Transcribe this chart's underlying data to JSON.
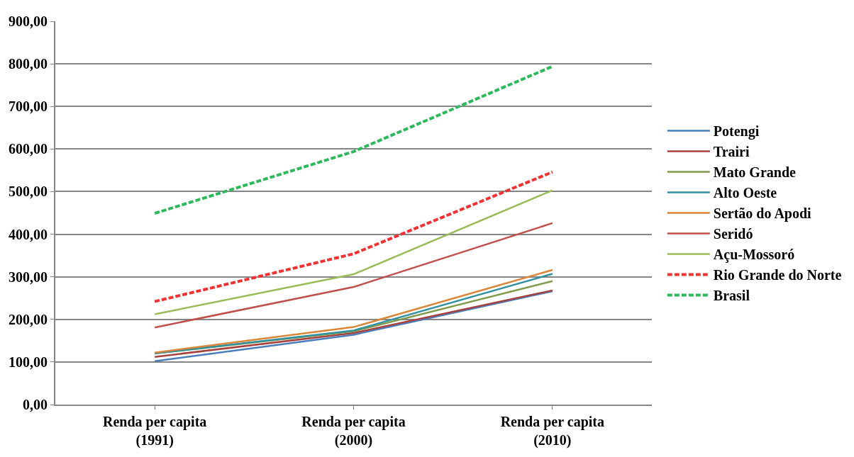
{
  "chart_data": {
    "type": "line",
    "categories": [
      "Renda per capita\n(1991)",
      "Renda per capita\n(2000)",
      "Renda per capita\n(2010)"
    ],
    "series": [
      {
        "name": "Potengi",
        "color": "#4a7ebb",
        "values": [
          102,
          164,
          266
        ]
      },
      {
        "name": "Trairi",
        "color": "#a5403d",
        "values": [
          112,
          168,
          268
        ]
      },
      {
        "name": "Mato Grande",
        "color": "#7f9a48",
        "values": [
          120,
          172,
          290
        ]
      },
      {
        "name": "Alto Oeste",
        "color": "#31909f",
        "values": [
          120,
          174,
          307
        ]
      },
      {
        "name": "Sertão do Apodi",
        "color": "#d98639",
        "values": [
          122,
          182,
          316
        ]
      },
      {
        "name": "Seridó",
        "color": "#c0504d",
        "values": [
          181,
          276,
          426
        ]
      },
      {
        "name": "Açu-Mossoró",
        "color": "#9bbb59",
        "values": [
          212,
          306,
          503
        ]
      },
      {
        "name": "Rio Grande do Norte",
        "color": "#f03232",
        "values": [
          242,
          354,
          546
        ],
        "line_style": "dashed"
      },
      {
        "name": "Brasil",
        "color": "#2eb85c",
        "values": [
          449,
          594,
          794
        ],
        "line_style": "dashed"
      }
    ],
    "ylim": [
      0,
      900
    ],
    "yticks": [
      {
        "value": 0,
        "label": "0,00"
      },
      {
        "value": 100,
        "label": "100,00"
      },
      {
        "value": 200,
        "label": "200,00"
      },
      {
        "value": 300,
        "label": "300,00"
      },
      {
        "value": 400,
        "label": "400,00"
      },
      {
        "value": 500,
        "label": "500,00"
      },
      {
        "value": 600,
        "label": "600,00"
      },
      {
        "value": 700,
        "label": "700,00"
      },
      {
        "value": 800,
        "label": "800,00"
      },
      {
        "value": 900,
        "label": "900,00"
      }
    ],
    "grid": "y",
    "legend": "right",
    "marker": "none",
    "line_style": "solid"
  }
}
